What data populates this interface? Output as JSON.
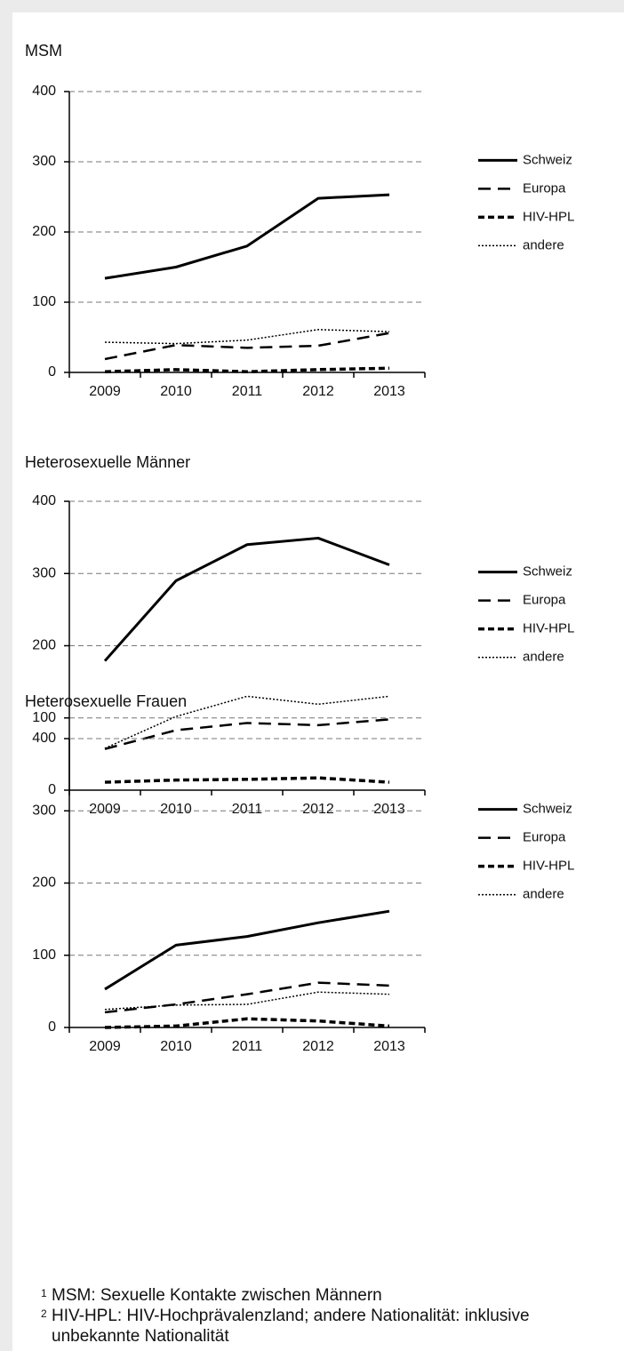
{
  "chart_data": [
    {
      "type": "line",
      "title": "MSM",
      "categories": [
        "2009",
        "2010",
        "2011",
        "2012",
        "2013"
      ],
      "ylim": [
        0,
        400
      ],
      "yticks": [
        0,
        100,
        200,
        300,
        400
      ],
      "grid": true,
      "legend": "right",
      "series": [
        {
          "name": "Schweiz",
          "color": "#000000",
          "line_style": "solid",
          "values": [
            134,
            150,
            180,
            248,
            253
          ]
        },
        {
          "name": "Europa",
          "color": "#000000",
          "line_style": "dashed",
          "values": [
            19,
            39,
            35,
            38,
            56
          ]
        },
        {
          "name": "HIV-HPL",
          "color": "#000000",
          "line_style": "short-dashed",
          "values": [
            1,
            4,
            1,
            4,
            6
          ]
        },
        {
          "name": "andere",
          "color": "#000000",
          "line_style": "dotted",
          "values": [
            43,
            41,
            46,
            61,
            58
          ]
        }
      ]
    },
    {
      "type": "line",
      "title": "Heterosexuelle Männer",
      "categories": [
        "2009",
        "2010",
        "2011",
        "2012",
        "2013"
      ],
      "ylim": [
        0,
        400
      ],
      "yticks": [
        0,
        100,
        200,
        300,
        400
      ],
      "grid": true,
      "legend": "right",
      "series": [
        {
          "name": "Schweiz",
          "color": "#000000",
          "line_style": "solid",
          "values": [
            179,
            290,
            340,
            349,
            312
          ]
        },
        {
          "name": "Europa",
          "color": "#000000",
          "line_style": "dashed",
          "values": [
            57,
            83,
            93,
            90,
            98
          ]
        },
        {
          "name": "HIV-HPL",
          "color": "#000000",
          "line_style": "short-dashed",
          "values": [
            11,
            14,
            15,
            17,
            11
          ]
        },
        {
          "name": "andere",
          "color": "#000000",
          "line_style": "dotted",
          "values": [
            58,
            102,
            130,
            119,
            130
          ]
        }
      ]
    },
    {
      "type": "line",
      "title": "Heterosexuelle Frauen",
      "categories": [
        "2009",
        "2010",
        "2011",
        "2012",
        "2013"
      ],
      "ylim": [
        0,
        400
      ],
      "yticks": [
        0,
        100,
        200,
        300,
        400
      ],
      "grid": true,
      "legend": "right",
      "series": [
        {
          "name": "Schweiz",
          "color": "#000000",
          "line_style": "solid",
          "values": [
            53,
            114,
            126,
            145,
            161
          ]
        },
        {
          "name": "Europa",
          "color": "#000000",
          "line_style": "dashed",
          "values": [
            21,
            32,
            46,
            62,
            58
          ]
        },
        {
          "name": "HIV-HPL",
          "color": "#000000",
          "line_style": "short-dashed",
          "values": [
            0,
            2,
            12,
            9,
            2
          ]
        },
        {
          "name": "andere",
          "color": "#000000",
          "line_style": "dotted",
          "values": [
            25,
            31,
            32,
            49,
            46
          ]
        }
      ]
    }
  ],
  "footnotes": [
    {
      "marker": "1",
      "text": "MSM: Sexuelle Kontakte zwischen Männern"
    },
    {
      "marker": "2",
      "text": "HIV-HPL: HIV-Hochprävalenzland; andere Nationalität: inklusive unbekannte Nationalität"
    }
  ]
}
